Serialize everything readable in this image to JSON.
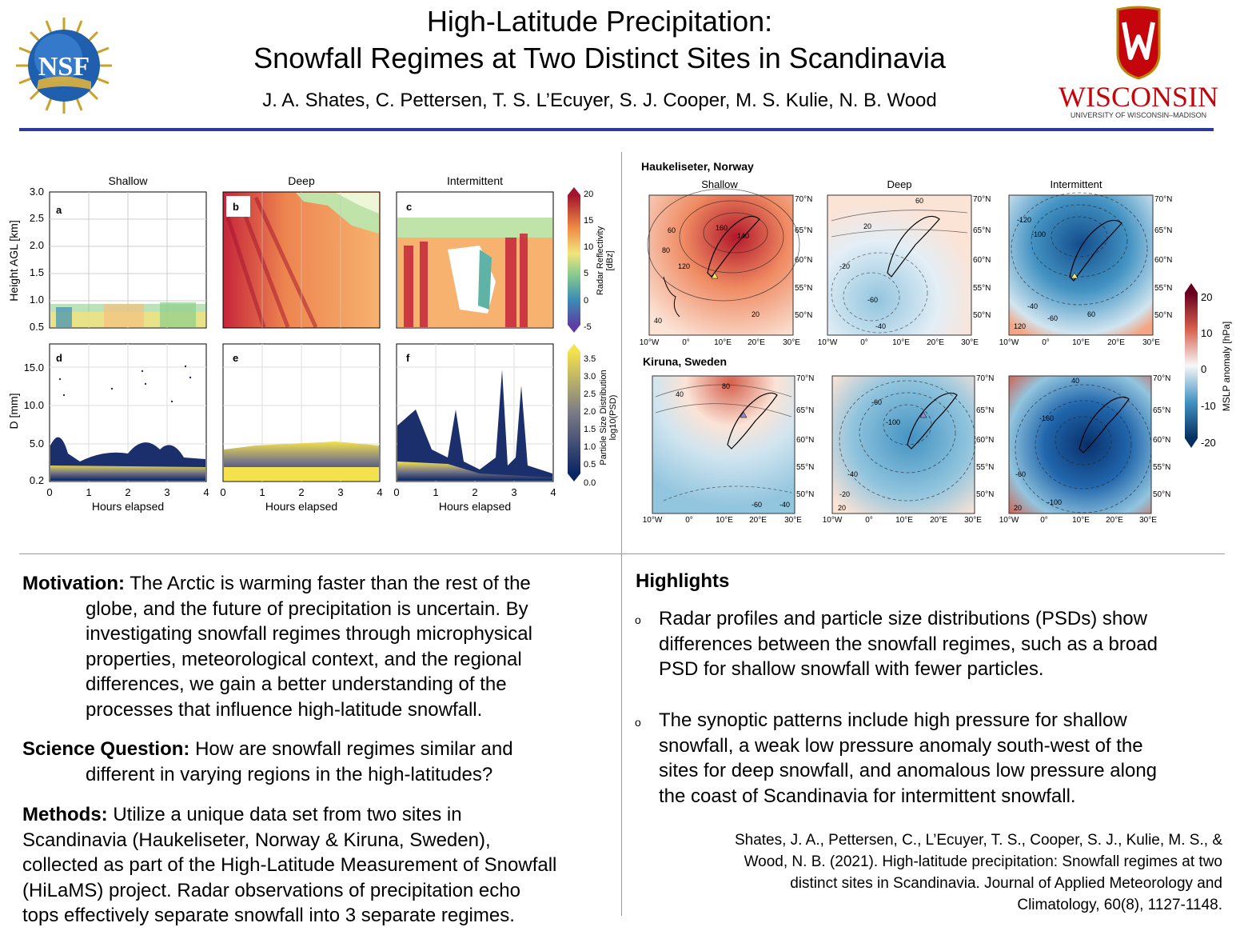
{
  "header": {
    "title_line1": "High-Latitude Precipitation:",
    "title_line2": "Snowfall Regimes at Two Distinct Sites in Scandinavia",
    "authors": "J. A. Shates, C. Pettersen, T. S. L’Ecuyer, S. J. Cooper, M. S. Kulie, N. B. Wood",
    "nsf_logo_text": "NSF",
    "uw_logo_text": "WISCONSIN",
    "uw_logo_subtext": "UNIVERSITY OF WISCONSIN–MADISON",
    "colors": {
      "rule": "#2b3b9b",
      "uw_red": "#c5050c",
      "nsf_blue": "#1f5fae"
    }
  },
  "figure_left": {
    "column_titles": [
      "Shallow",
      "Deep",
      "Intermittent"
    ],
    "panel_letters": [
      "a",
      "b",
      "c",
      "d",
      "e",
      "f"
    ],
    "radar_ylabel": "Height AGL [km]",
    "radar_yticks": [
      "3.0",
      "2.5",
      "2.0",
      "1.5",
      "1.0",
      "0.5"
    ],
    "psd_ylabel": "D [mm]",
    "psd_yticks": [
      "15.0",
      "10.0",
      "5.0",
      "0.2"
    ],
    "xticks": [
      "0",
      "1",
      "2",
      "3",
      "4"
    ],
    "xlabel": "Hours elapsed",
    "cbar1_label_line1": "Radar Reflectivity",
    "cbar1_label_line2": "[dBz]",
    "cbar1_ticks": [
      "20",
      "15",
      "10",
      "5",
      "0",
      "-5"
    ],
    "cbar2_label_line1": "Particle Size Distribution",
    "cbar2_label_line2": "log10(PSD)",
    "cbar2_ticks": [
      "3.5",
      "3.0",
      "2.5",
      "2.0",
      "1.5",
      "1.0",
      "0.5",
      "0.0"
    ]
  },
  "figure_right": {
    "site1": "Haukeliseter, Norway",
    "site2": "Kiruna, Sweden",
    "column_titles": [
      "Shallow",
      "Deep",
      "Intermittent"
    ],
    "lat_ticks": [
      "70°N",
      "65°N",
      "60°N",
      "55°N",
      "50°N"
    ],
    "lon_ticks": [
      "10°W",
      "0°",
      "10°E",
      "20°E",
      "30°E"
    ],
    "cbar_label": "MSLP anomaly [hPa]",
    "cbar_ticks": [
      "20",
      "10",
      "0",
      "-10",
      "-20"
    ],
    "contour_labels": {
      "h_shallow": [
        "160",
        "140",
        "120",
        "80",
        "60",
        "40",
        "20"
      ],
      "h_deep": [
        "60",
        "20",
        "-20",
        "-40",
        "-60"
      ],
      "h_intermittent": [
        "-120",
        "-100",
        "-60",
        "-40",
        "60",
        "120"
      ],
      "k_shallow": [
        "80",
        "40",
        "-40",
        "-60"
      ],
      "k_deep": [
        "-100",
        "-60",
        "-40",
        "-20",
        "20"
      ],
      "k_intermittent": [
        "40",
        "-160",
        "-100",
        "-60",
        "20"
      ]
    }
  },
  "text": {
    "motivation_label": "Motivation:",
    "motivation_line1": "The Arctic is warming faster than the rest of the",
    "motivation_cont": [
      "globe, and the future of precipitation is uncertain. By",
      "investigating snowfall regimes through microphysical",
      "properties, meteorological context, and the regional",
      "differences, we gain a better understanding of the",
      "processes that influence high-latitude snowfall."
    ],
    "question_label": "Science Question:",
    "question_line1": "How are snowfall regimes similar and",
    "question_cont": [
      "different in varying regions in the high-latitudes?"
    ],
    "methods_label": "Methods:",
    "methods_line1": "Utilize a unique data set from two sites in",
    "methods_cont": [
      "Scandinavia (Haukeliseter, Norway & Kiruna, Sweden),",
      "collected as part of the High-Latitude Measurement of Snowfall",
      "(HiLaMS) project. Radar observations of precipitation echo",
      "tops effectively separate snowfall into 3 separate regimes."
    ],
    "highlights_title": "Highlights",
    "bullet_symbol": "o",
    "highlight1": [
      "Radar profiles and particle size distributions (PSDs) show",
      "differences between the snowfall regimes, such as a broad",
      "PSD for shallow snowfall with fewer particles."
    ],
    "highlight2": [
      "The synoptic patterns include high pressure for shallow",
      "snowfall, a weak low pressure anomaly south-west of the",
      "sites for deep snowfall, and anomalous low pressure along",
      "the coast of Scandinavia for intermittent snowfall."
    ],
    "citation": [
      "Shates, J. A., Pettersen, C., L’Ecuyer, T. S., Cooper, S. J., Kulie, M. S., &",
      "Wood, N. B. (2021). High-latitude precipitation: Snowfall regimes at two",
      "distinct sites in Scandinavia. Journal of Applied Meteorology and",
      "Climatology, 60(8), 1127-1148."
    ]
  }
}
